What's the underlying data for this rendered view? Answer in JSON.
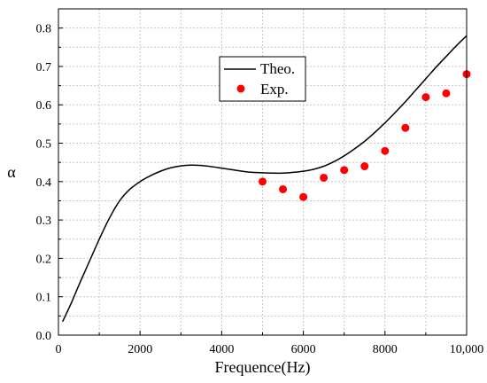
{
  "chart_data": {
    "type": "line",
    "title": "",
    "xlabel": "Frequence(Hz)",
    "ylabel": "α",
    "xlim": [
      0,
      10000
    ],
    "ylim": [
      0,
      0.85
    ],
    "x_ticks": [
      0,
      2000,
      4000,
      6000,
      8000,
      10000
    ],
    "x_tick_labels": [
      "0",
      "2000",
      "4000",
      "6000",
      "8000",
      "10,000"
    ],
    "y_ticks": [
      0.0,
      0.1,
      0.2,
      0.3,
      0.4,
      0.5,
      0.6,
      0.7,
      0.8
    ],
    "y_tick_labels": [
      "0.0",
      "0.1",
      "0.2",
      "0.3",
      "0.4",
      "0.5",
      "0.6",
      "0.7",
      "0.8"
    ],
    "grid": true,
    "legend_position": "top-center",
    "series": [
      {
        "name": "Theo.",
        "kind": "line",
        "color": "#000000",
        "x": [
          100,
          300,
          500,
          750,
          1000,
          1250,
          1500,
          1750,
          2000,
          2250,
          2500,
          2750,
          3000,
          3250,
          3500,
          3750,
          4000,
          4250,
          4500,
          4750,
          5000,
          5250,
          5500,
          5750,
          6000,
          6250,
          6500,
          6750,
          7000,
          7250,
          7500,
          7750,
          8000,
          8250,
          8500,
          8750,
          9000,
          9250,
          9500,
          9750,
          10000
        ],
        "y": [
          0.035,
          0.08,
          0.13,
          0.19,
          0.25,
          0.305,
          0.35,
          0.38,
          0.4,
          0.415,
          0.427,
          0.436,
          0.441,
          0.443,
          0.442,
          0.439,
          0.435,
          0.431,
          0.427,
          0.424,
          0.423,
          0.422,
          0.422,
          0.424,
          0.427,
          0.432,
          0.44,
          0.452,
          0.467,
          0.485,
          0.505,
          0.528,
          0.553,
          0.58,
          0.608,
          0.638,
          0.668,
          0.698,
          0.726,
          0.754,
          0.78
        ]
      },
      {
        "name": "Exp.",
        "kind": "scatter",
        "color": "#ff0000",
        "x": [
          5000,
          5500,
          6000,
          6500,
          7000,
          7500,
          8000,
          8500,
          9000,
          9500,
          10000
        ],
        "y": [
          0.4,
          0.38,
          0.36,
          0.41,
          0.43,
          0.44,
          0.48,
          0.54,
          0.62,
          0.63,
          0.68
        ]
      }
    ]
  }
}
